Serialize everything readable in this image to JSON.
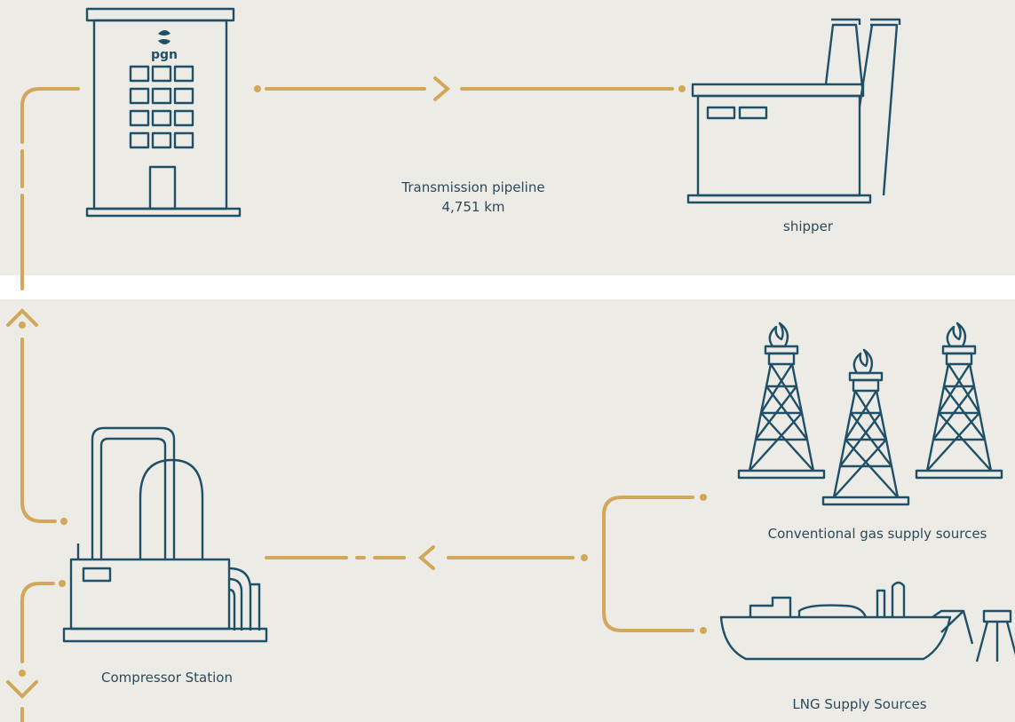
{
  "office": {
    "logo": "pgn"
  },
  "pipeline": {
    "label": "Transmission pipeline",
    "length": "4,751 km"
  },
  "shipper": {
    "label": "shipper"
  },
  "conventional": {
    "label": "Conventional gas supply sources"
  },
  "lng": {
    "label": "LNG Supply Sources"
  },
  "compressor": {
    "label": "Compressor Station"
  }
}
